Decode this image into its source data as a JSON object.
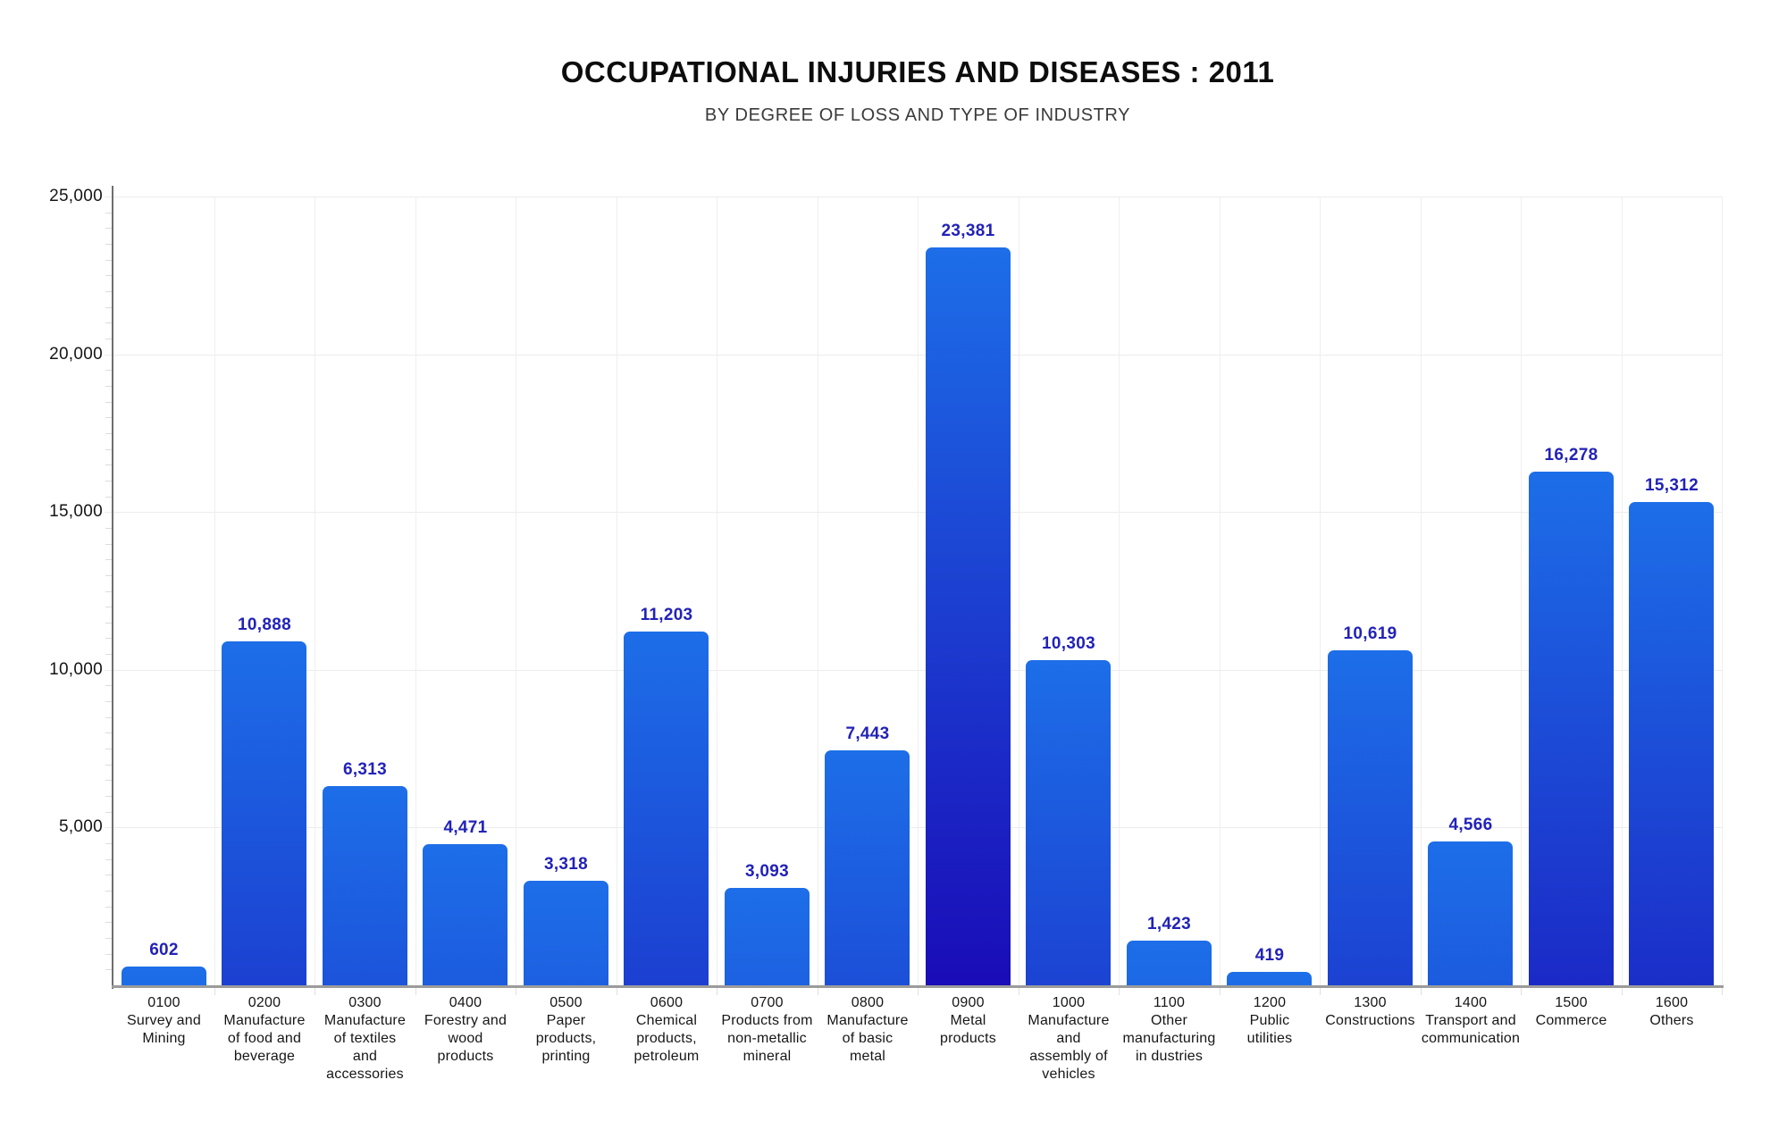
{
  "title": "OCCUPATIONAL INJURIES AND DISEASES : 2011",
  "subtitle": "BY DEGREE OF LOSS AND TYPE OF INDUSTRY",
  "colors": {
    "bar_gradient_top": "#1d6ee8",
    "bar_gradient_bottom": "#1a05b4",
    "value_label": "#2222b8",
    "y_axis_line": "#6e6e6e",
    "x_axis_line": "#9b9b9b",
    "gridline": "#ececec",
    "minor_tick": "#dcdcdc",
    "label_text": "#161616"
  },
  "chart_data": {
    "type": "bar",
    "title": "OCCUPATIONAL INJURIES AND DISEASES : 2011",
    "subtitle": "BY DEGREE OF LOSS AND TYPE OF INDUSTRY",
    "categories": [
      {
        "code": "0100",
        "name_lines": [
          "Survey and",
          "Mining"
        ]
      },
      {
        "code": "0200",
        "name_lines": [
          "Manufacture",
          "of food and",
          "beverage"
        ]
      },
      {
        "code": "0300",
        "name_lines": [
          "Manufacture",
          "of textiles",
          "and",
          "accessories"
        ]
      },
      {
        "code": "0400",
        "name_lines": [
          "Forestry and",
          "wood",
          "products"
        ]
      },
      {
        "code": "0500",
        "name_lines": [
          "Paper",
          "products,",
          "printing"
        ]
      },
      {
        "code": "0600",
        "name_lines": [
          "Chemical",
          "products,",
          "petroleum"
        ]
      },
      {
        "code": "0700",
        "name_lines": [
          "Products from",
          "non-metallic",
          "mineral"
        ]
      },
      {
        "code": "0800",
        "name_lines": [
          "Manufacture",
          "of basic",
          "metal"
        ]
      },
      {
        "code": "0900",
        "name_lines": [
          "Metal",
          "products"
        ]
      },
      {
        "code": "1000",
        "name_lines": [
          "Manufacture",
          "and",
          "assembly of",
          "vehicles"
        ]
      },
      {
        "code": "1100",
        "name_lines": [
          "Other",
          "manufacturing",
          "in dustries"
        ]
      },
      {
        "code": "1200",
        "name_lines": [
          "Public",
          "utilities"
        ]
      },
      {
        "code": "1300",
        "name_lines": [
          "Constructions"
        ]
      },
      {
        "code": "1400",
        "name_lines": [
          "Transport and",
          "communication"
        ]
      },
      {
        "code": "1500",
        "name_lines": [
          "Commerce"
        ]
      },
      {
        "code": "1600",
        "name_lines": [
          "Others"
        ]
      }
    ],
    "values": [
      602,
      10888,
      6313,
      4471,
      3318,
      11203,
      3093,
      7443,
      23381,
      10303,
      1423,
      419,
      10619,
      4566,
      16278,
      15312
    ],
    "value_labels": [
      "602",
      "10,888",
      "6,313",
      "4,471",
      "3,318",
      "11,203",
      "3,093",
      "7,443",
      "23,381",
      "10,303",
      "1,423",
      "419",
      "10,619",
      "4,566",
      "16,278",
      "15,312"
    ],
    "y_axis": {
      "min": 0,
      "max": 25000,
      "major_step": 5000,
      "minor_step": 500,
      "major_tick_values": [
        5000,
        10000,
        15000,
        20000,
        25000
      ],
      "major_tick_labels": [
        "5,000",
        "10,000",
        "15,000",
        "20,000",
        "25,000"
      ]
    },
    "grid": true,
    "legend": false,
    "xlabel": "",
    "ylabel": ""
  }
}
